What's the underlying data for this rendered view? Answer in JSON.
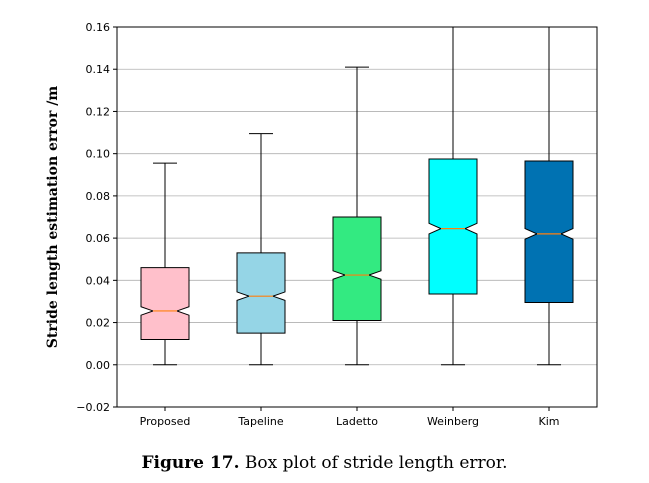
{
  "caption": {
    "label": "Figure 17.",
    "text": " Box plot of stride length error."
  },
  "chart_data": {
    "type": "box",
    "title": "",
    "xlabel": "",
    "ylabel": "Stride length estimation error /m",
    "ylim": [
      -0.02,
      0.16
    ],
    "yticks": [
      "−0.02",
      "0.00",
      "0.02",
      "0.04",
      "0.06",
      "0.08",
      "0.10",
      "0.12",
      "0.14",
      "0.16"
    ],
    "ytick_values": [
      -0.02,
      0.0,
      0.02,
      0.04,
      0.06,
      0.08,
      0.1,
      0.12,
      0.14,
      0.16
    ],
    "grid": "horizontal",
    "notched": true,
    "median_color": "#ff7f0e",
    "categories": [
      "Proposed",
      "Tapeline",
      "Ladetto",
      "Weinberg",
      "Kim"
    ],
    "boxes": [
      {
        "name": "Proposed",
        "whisker_low": 0.0,
        "q1": 0.012,
        "median": 0.0255,
        "q3": 0.046,
        "whisker_high": 0.0955,
        "notch_low": 0.0235,
        "notch_high": 0.0275,
        "color": "#ffc0cb"
      },
      {
        "name": "Tapeline",
        "whisker_low": 0.0,
        "q1": 0.015,
        "median": 0.0325,
        "q3": 0.053,
        "whisker_high": 0.1095,
        "notch_low": 0.0305,
        "notch_high": 0.0345,
        "color": "#95d5e6"
      },
      {
        "name": "Ladetto",
        "whisker_low": 0.0,
        "q1": 0.021,
        "median": 0.0425,
        "q3": 0.07,
        "whisker_high": 0.141,
        "notch_low": 0.0405,
        "notch_high": 0.0445,
        "color": "#33ea81"
      },
      {
        "name": "Weinberg",
        "whisker_low": 0.0,
        "q1": 0.0335,
        "median": 0.0645,
        "q3": 0.0975,
        "whisker_high": 0.16,
        "notch_low": 0.062,
        "notch_high": 0.067,
        "color": "#00ffff"
      },
      {
        "name": "Kim",
        "whisker_low": 0.0,
        "q1": 0.0295,
        "median": 0.062,
        "q3": 0.0965,
        "whisker_high": 0.16,
        "notch_low": 0.0595,
        "notch_high": 0.0645,
        "color": "#0072b2"
      }
    ]
  }
}
